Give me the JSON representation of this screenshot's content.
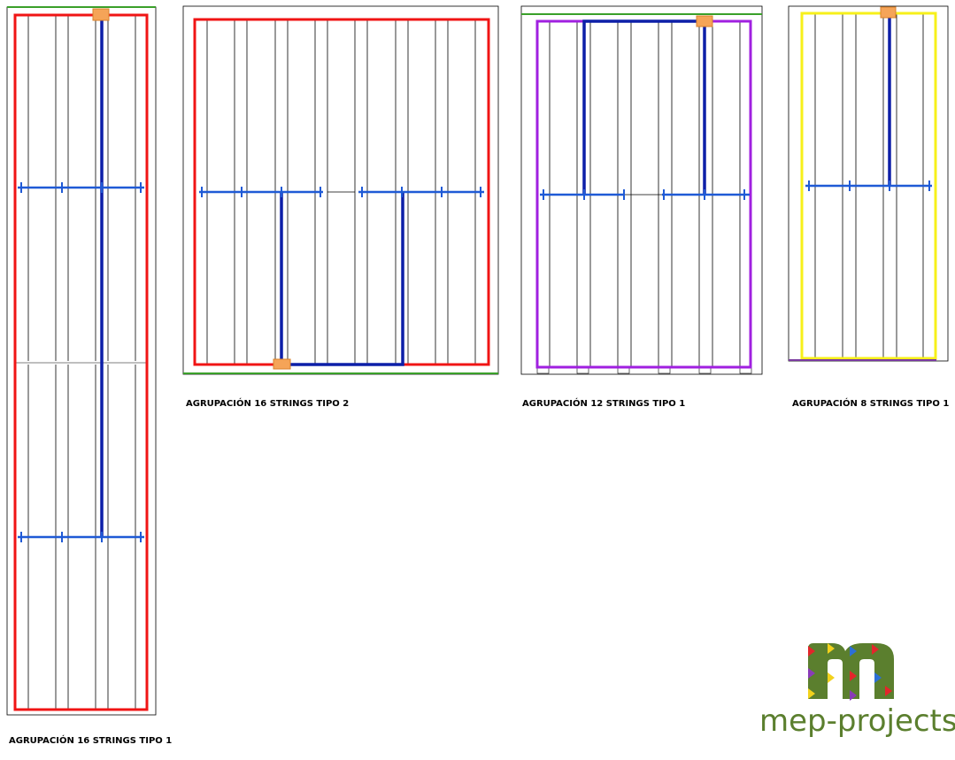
{
  "panels": [
    {
      "label": "AGRUPACIÓN 16 STRINGS TIPO 1"
    },
    {
      "label": "AGRUPACIÓN 16 STRINGS TIPO 2"
    },
    {
      "label": "AGRUPACIÓN 12 STRINGS TIPO 1"
    },
    {
      "label": "AGRUPACIÓN 8 STRINGS TIPO 1"
    }
  ],
  "logo": {
    "text": "mep-projects"
  }
}
